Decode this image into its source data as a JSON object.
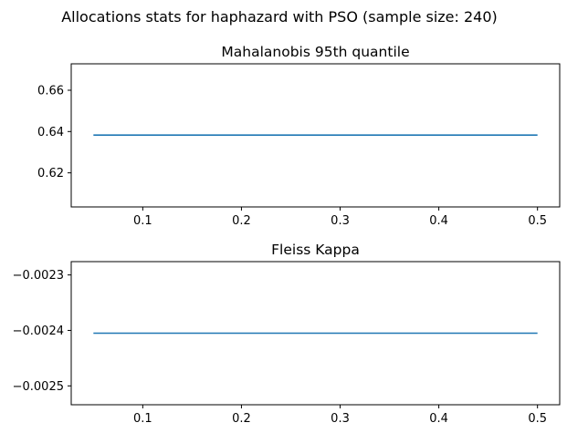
{
  "figure": {
    "suptitle": "Allocations stats for haphazard with PSO (sample size: 240)"
  },
  "chart_data": [
    {
      "type": "line",
      "title": "Mahalanobis 95th quantile",
      "xlabel": "",
      "ylabel": "",
      "xlim": [
        0.0275,
        0.5225
      ],
      "ylim": [
        0.6035,
        0.6728
      ],
      "xticks": [
        0.1,
        0.2,
        0.3,
        0.4,
        0.5
      ],
      "xtick_labels": [
        "0.1",
        "0.2",
        "0.3",
        "0.4",
        "0.5"
      ],
      "yticks": [
        0.62,
        0.64,
        0.66
      ],
      "ytick_labels": [
        "0.62",
        "0.64",
        "0.66"
      ],
      "grid": false,
      "color": "#1f77b4",
      "series": [
        {
          "x": [
            0.05,
            0.1,
            0.15,
            0.2,
            0.25,
            0.3,
            0.35,
            0.4,
            0.45,
            0.5
          ],
          "y": [
            0.6383,
            0.6383,
            0.6383,
            0.6383,
            0.6383,
            0.6383,
            0.6383,
            0.6383,
            0.6383,
            0.6383
          ]
        }
      ]
    },
    {
      "type": "line",
      "title": "Fleiss Kappa",
      "xlabel": "",
      "ylabel": "",
      "xlim": [
        0.0275,
        0.5225
      ],
      "ylim": [
        -0.002534,
        -0.002276
      ],
      "xticks": [
        0.1,
        0.2,
        0.3,
        0.4,
        0.5
      ],
      "xtick_labels": [
        "0.1",
        "0.2",
        "0.3",
        "0.4",
        "0.5"
      ],
      "yticks": [
        -0.0023,
        -0.0024,
        -0.0025
      ],
      "ytick_labels": [
        "−0.0023",
        "−0.0024",
        "−0.0025"
      ],
      "grid": false,
      "color": "#1f77b4",
      "series": [
        {
          "x": [
            0.05,
            0.1,
            0.15,
            0.2,
            0.25,
            0.3,
            0.35,
            0.4,
            0.45,
            0.5
          ],
          "y": [
            -0.002405,
            -0.002405,
            -0.002405,
            -0.002405,
            -0.002405,
            -0.002405,
            -0.002405,
            -0.002405,
            -0.002405,
            -0.002405
          ]
        }
      ]
    }
  ]
}
